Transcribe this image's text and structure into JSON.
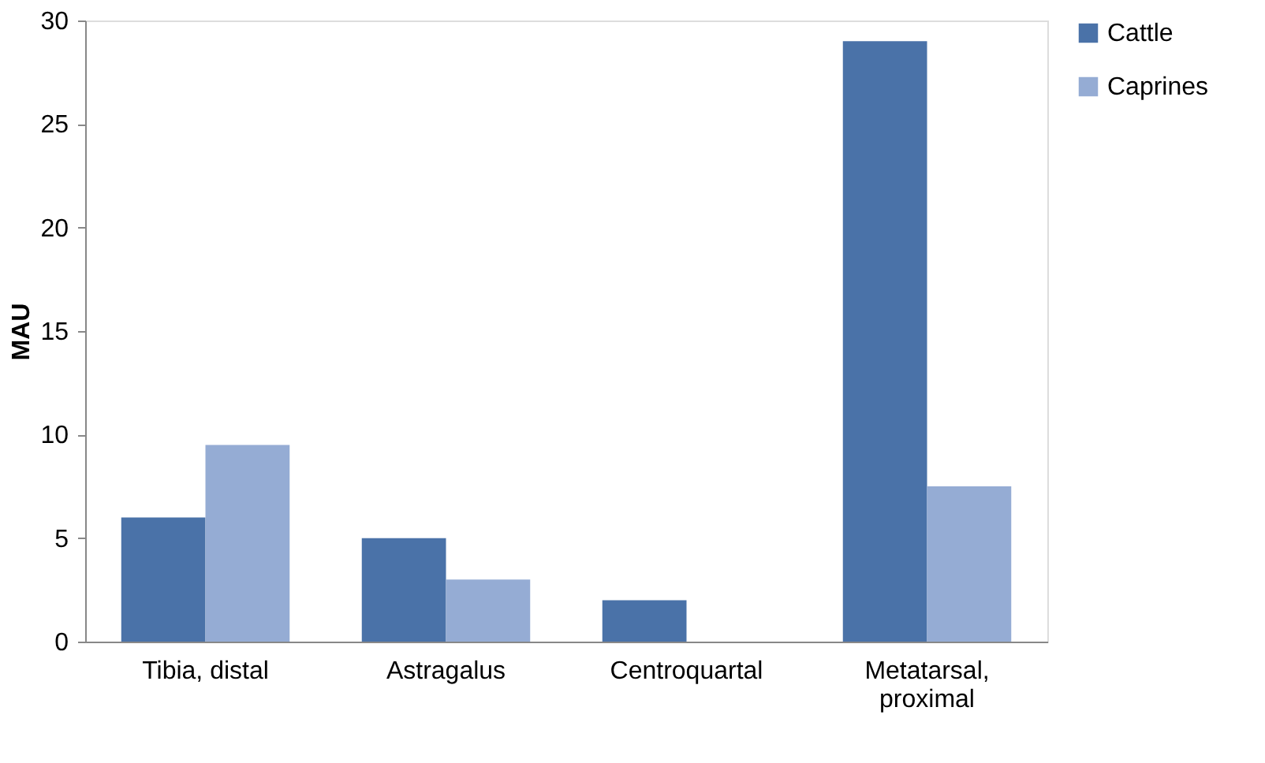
{
  "chart_data": {
    "type": "bar",
    "ylabel": "MAU",
    "categories": [
      "Tibia, distal",
      "Astragalus",
      "Centroquartal",
      "Metatarsal,\nproximal"
    ],
    "series": [
      {
        "name": "Cattle",
        "color": "#4a72a8",
        "values": [
          6,
          5,
          2,
          29
        ]
      },
      {
        "name": "Caprines",
        "color": "#95acd4",
        "values": [
          9.5,
          3,
          0,
          7.5
        ]
      }
    ],
    "ylim": [
      0,
      30
    ],
    "yticks": [
      0,
      5,
      10,
      15,
      20,
      25,
      30
    ],
    "grid": false,
    "legend": "right"
  }
}
